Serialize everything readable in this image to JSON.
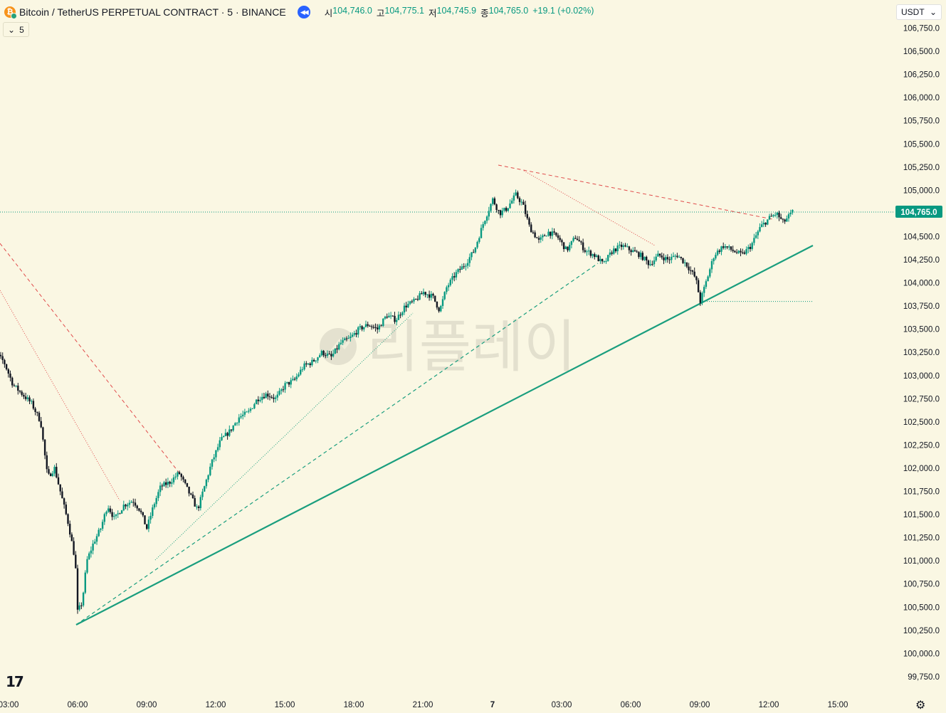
{
  "header": {
    "title": "Bitcoin / TetherUS PERPETUAL CONTRACT · 5 · BINANCE",
    "coin_icon": "bitcoin-icon",
    "replay_icon": "replay-icon",
    "ohlc": [
      {
        "key": "시",
        "value": "104,746.0"
      },
      {
        "key": "고",
        "value": "104,775.1"
      },
      {
        "key": "저",
        "value": "104,745.9"
      },
      {
        "key": "종",
        "value": "104,765.0"
      }
    ],
    "change": "+19.1 (+0.02%)"
  },
  "interval_label": "5",
  "currency_selector": "USDT",
  "watermark": "리플레이",
  "current_price_label": "104,765.0",
  "colors": {
    "background": "#faf7e3",
    "up": "#089981",
    "down": "#131722",
    "trendline": "#1a9e7e",
    "resistance": "#e04b4b",
    "price_tag": "#089981"
  },
  "chart_data": {
    "type": "candlestick",
    "symbol": "BTCUSDT.P",
    "timeframe": "5",
    "y_ticks": [
      "106,750.0",
      "106,500.0",
      "106,250.0",
      "106,000.0",
      "105,750.0",
      "105,500.0",
      "105,250.0",
      "105,000.0",
      "104,750.0",
      "104,500.0",
      "104,250.0",
      "104,000.0",
      "103,750.0",
      "103,500.0",
      "103,250.0",
      "103,000.0",
      "102,750.0",
      "102,500.0",
      "102,250.0",
      "102,000.0",
      "101,750.0",
      "101,500.0",
      "101,250.0",
      "101,000.0",
      "100,750.0",
      "100,500.0",
      "100,250.0",
      "100,000.0",
      "99,750.0"
    ],
    "x_ticks": [
      "03:00",
      "06:00",
      "09:00",
      "12:00",
      "15:00",
      "18:00",
      "21:00",
      "7",
      "03:00",
      "06:00",
      "09:00",
      "12:00",
      "15:00"
    ],
    "ylim": [
      99700,
      106800
    ],
    "price_path_hours": [
      [
        2.0,
        103350
      ],
      [
        2.4,
        103250
      ],
      [
        2.8,
        103150
      ],
      [
        3.2,
        102900
      ],
      [
        3.6,
        102800
      ],
      [
        4.0,
        102700
      ],
      [
        4.4,
        102500
      ],
      [
        4.7,
        101900
      ],
      [
        5.0,
        102000
      ],
      [
        5.3,
        101700
      ],
      [
        5.6,
        101400
      ],
      [
        5.9,
        101000
      ],
      [
        6.0,
        100450
      ],
      [
        6.2,
        100550
      ],
      [
        6.4,
        101000
      ],
      [
        6.7,
        101200
      ],
      [
        7.0,
        101350
      ],
      [
        7.3,
        101600
      ],
      [
        7.6,
        101450
      ],
      [
        8.0,
        101600
      ],
      [
        8.4,
        101650
      ],
      [
        8.7,
        101550
      ],
      [
        9.0,
        101350
      ],
      [
        9.3,
        101600
      ],
      [
        9.6,
        101800
      ],
      [
        10.0,
        101850
      ],
      [
        10.4,
        101950
      ],
      [
        10.8,
        101750
      ],
      [
        11.2,
        101550
      ],
      [
        11.5,
        101800
      ],
      [
        11.8,
        102050
      ],
      [
        12.2,
        102300
      ],
      [
        12.6,
        102400
      ],
      [
        13.0,
        102550
      ],
      [
        13.4,
        102600
      ],
      [
        13.8,
        102750
      ],
      [
        14.2,
        102800
      ],
      [
        14.6,
        102750
      ],
      [
        15.0,
        102900
      ],
      [
        15.4,
        102950
      ],
      [
        15.8,
        103100
      ],
      [
        16.2,
        103150
      ],
      [
        16.6,
        103250
      ],
      [
        17.0,
        103200
      ],
      [
        17.4,
        103350
      ],
      [
        17.8,
        103400
      ],
      [
        18.2,
        103500
      ],
      [
        18.6,
        103550
      ],
      [
        19.0,
        103500
      ],
      [
        19.4,
        103650
      ],
      [
        19.8,
        103600
      ],
      [
        20.2,
        103750
      ],
      [
        20.6,
        103800
      ],
      [
        21.0,
        103900
      ],
      [
        21.4,
        103850
      ],
      [
        21.7,
        103700
      ],
      [
        22.0,
        103950
      ],
      [
        22.4,
        104100
      ],
      [
        22.8,
        104200
      ],
      [
        23.2,
        104350
      ],
      [
        23.6,
        104650
      ],
      [
        24.0,
        104900
      ],
      [
        24.3,
        104750
      ],
      [
        24.6,
        104800
      ],
      [
        25.0,
        104950
      ],
      [
        25.3,
        104850
      ],
      [
        25.6,
        104600
      ],
      [
        26.0,
        104450
      ],
      [
        26.4,
        104550
      ],
      [
        26.8,
        104500
      ],
      [
        27.2,
        104350
      ],
      [
        27.6,
        104500
      ],
      [
        28.0,
        104350
      ],
      [
        28.4,
        104300
      ],
      [
        28.8,
        104200
      ],
      [
        29.2,
        104350
      ],
      [
        29.6,
        104400
      ],
      [
        30.0,
        104350
      ],
      [
        30.4,
        104300
      ],
      [
        30.8,
        104200
      ],
      [
        31.2,
        104300
      ],
      [
        31.6,
        104250
      ],
      [
        32.0,
        104300
      ],
      [
        32.4,
        104200
      ],
      [
        32.8,
        104050
      ],
      [
        33.0,
        103800
      ],
      [
        33.3,
        104050
      ],
      [
        33.6,
        104300
      ],
      [
        34.0,
        104400
      ],
      [
        34.4,
        104350
      ],
      [
        34.8,
        104300
      ],
      [
        35.2,
        104400
      ],
      [
        35.6,
        104600
      ],
      [
        36.0,
        104700
      ],
      [
        36.3,
        104750
      ],
      [
        36.6,
        104650
      ],
      [
        37.0,
        104765
      ]
    ],
    "lines": [
      {
        "name": "support-trendline",
        "style": "solid"
      },
      {
        "name": "support-dashed",
        "style": "dashed"
      },
      {
        "name": "support-dotted",
        "style": "dotted"
      },
      {
        "name": "resistance-dashed-left",
        "style": "dashed"
      },
      {
        "name": "resistance-dotted-left",
        "style": "dotted"
      },
      {
        "name": "resistance-dashed-top",
        "style": "dashed"
      },
      {
        "name": "resistance-dotted-top",
        "style": "dotted"
      },
      {
        "name": "current-price-line",
        "style": "dotted",
        "value": 104765
      },
      {
        "name": "low-level-line",
        "style": "dotted",
        "value": 103800
      }
    ]
  }
}
